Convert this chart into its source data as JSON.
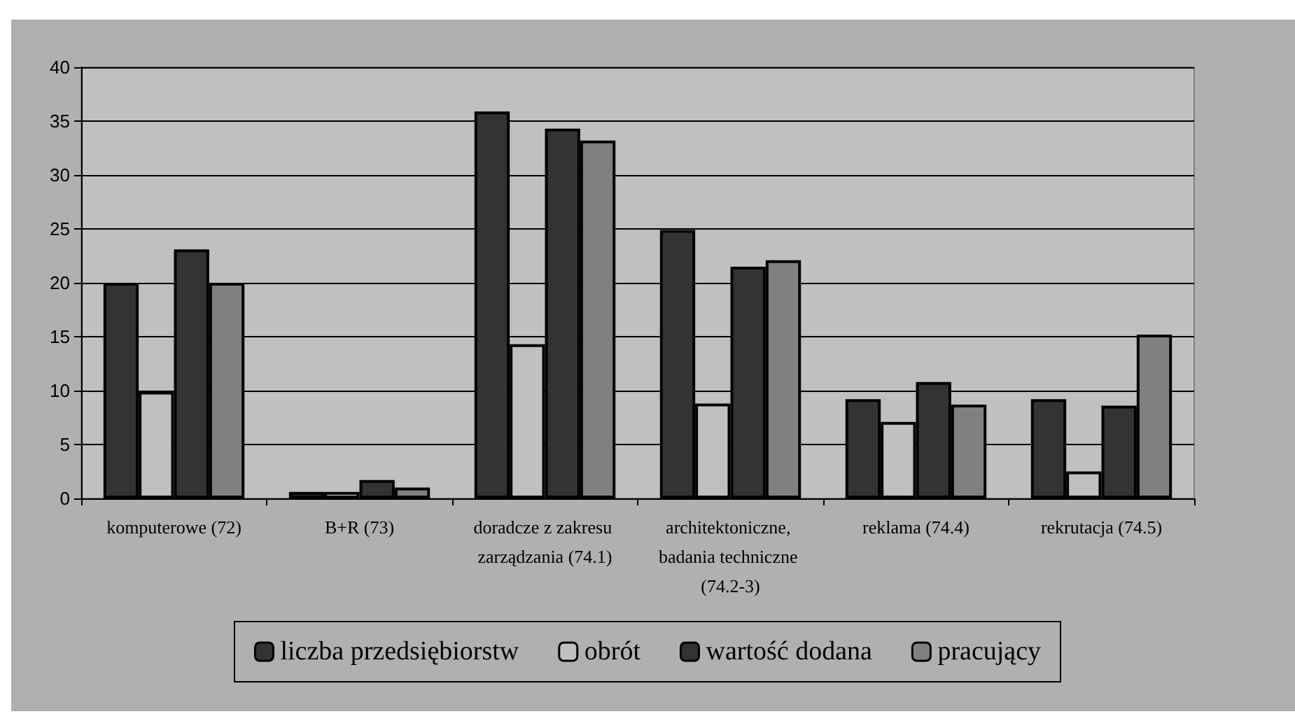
{
  "chart_data": {
    "type": "bar",
    "categories": [
      "komputerowe (72)",
      "B+R (73)",
      "doradcze z zakresu zarządzania (74.1)",
      "architektoniczne, badania techniczne (74.2-3)",
      "reklama (74.4)",
      "rekrutacja (74.5)"
    ],
    "series": [
      {
        "name": "liczba przedsiębiorstw",
        "color": "#333333",
        "values": [
          20,
          0.6,
          35.9,
          24.9,
          9.2,
          9.2
        ]
      },
      {
        "name": "obrót",
        "color": "#c0c0c0",
        "values": [
          9.9,
          0.6,
          14.3,
          8.8,
          7.1,
          2.5
        ]
      },
      {
        "name": "wartość dodana",
        "color": "#333333",
        "values": [
          23.1,
          1.7,
          34.3,
          21.5,
          10.8,
          8.6
        ]
      },
      {
        "name": "pracujący",
        "color": "#808080",
        "values": [
          20,
          1.0,
          33.2,
          22.1,
          8.7,
          15.2
        ]
      }
    ],
    "ylim": [
      0,
      40
    ],
    "yticks": [
      0,
      5,
      10,
      15,
      20,
      25,
      30,
      35,
      40
    ],
    "grid": "y",
    "legend": "bottom"
  }
}
